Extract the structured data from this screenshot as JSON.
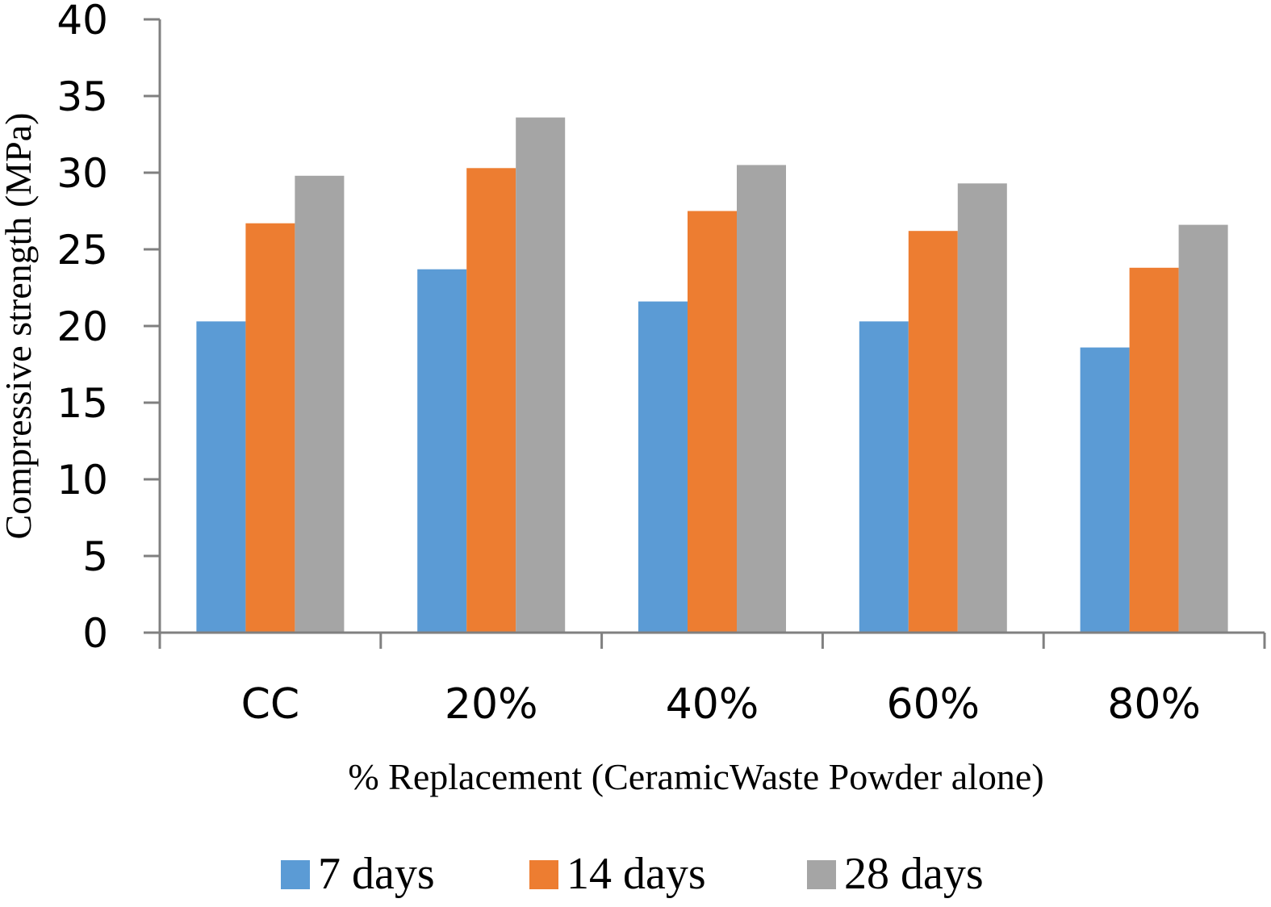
{
  "chart_data": {
    "type": "bar",
    "title": "",
    "xlabel": "% Replacement (CeramicWaste Powder alone)",
    "ylabel": "Compressive strength (MPa)",
    "categories": [
      "CC",
      "20%",
      "40%",
      "60%",
      "80%"
    ],
    "ylim": [
      0,
      40
    ],
    "yticks": [
      0,
      5,
      10,
      15,
      20,
      25,
      30,
      35,
      40
    ],
    "grid": false,
    "legend_position": "bottom",
    "series": [
      {
        "name": "7 days",
        "color": "#5B9BD5",
        "values": [
          20.3,
          23.7,
          21.6,
          20.3,
          18.6
        ]
      },
      {
        "name": "14 days",
        "color": "#ED7D31",
        "values": [
          26.7,
          30.3,
          27.5,
          26.2,
          23.8
        ]
      },
      {
        "name": "28 days",
        "color": "#A5A5A5",
        "values": [
          29.8,
          33.6,
          30.5,
          29.3,
          26.6
        ]
      }
    ]
  }
}
